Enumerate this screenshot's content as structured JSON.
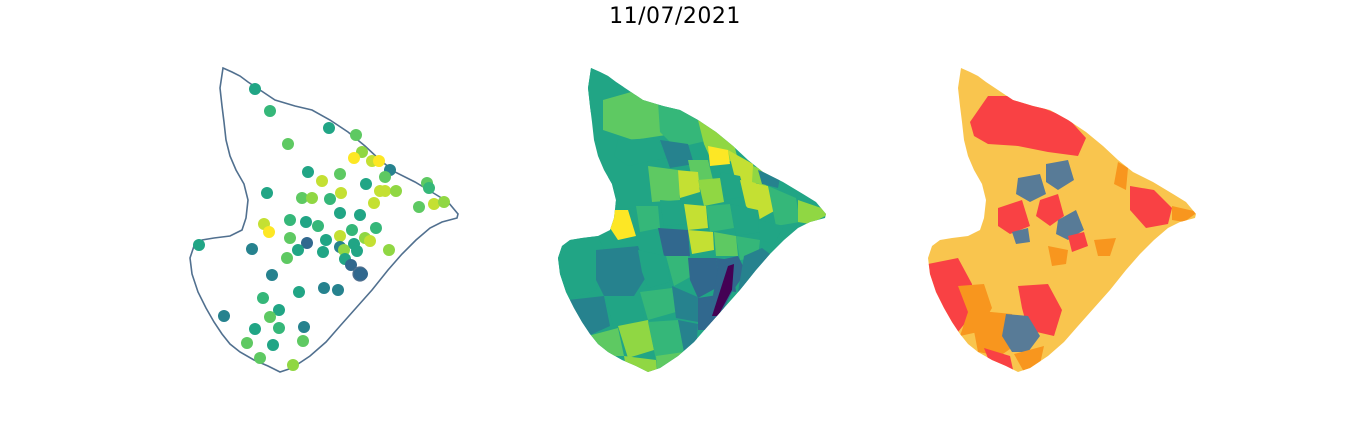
{
  "figure": {
    "title": "11/07/2021"
  },
  "colors": {
    "outline": "#51708f",
    "viridis": [
      "#440154",
      "#31688e",
      "#26828e",
      "#21a585",
      "#35b779",
      "#5ec962",
      "#90d743",
      "#c4e033",
      "#fde725"
    ],
    "classes": {
      "low": "#587b97",
      "medium": "#f9c54e",
      "high": "#f8961e",
      "very_high": "#f94144"
    }
  },
  "panels": [
    {
      "id": "points",
      "kind": "point-map"
    },
    {
      "id": "choropleth",
      "kind": "choropleth-map"
    },
    {
      "id": "classes",
      "kind": "classified-choropleth-map"
    }
  ]
}
